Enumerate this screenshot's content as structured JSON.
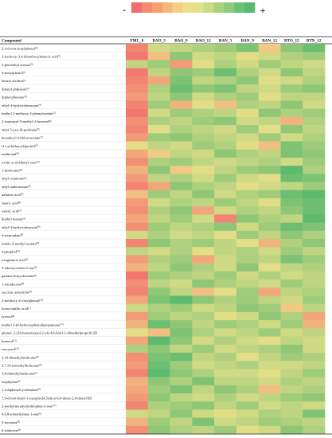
{
  "legend": {
    "minus_label": "-",
    "plus_label": "+",
    "colors": [
      "#f26c6c",
      "#f58a6e",
      "#f7a06e",
      "#f4b978",
      "#f2cf84",
      "#eedf8a",
      "#dfe28a",
      "#c9dd86",
      "#abd37e",
      "#8ccb7a",
      "#6cc274",
      "#58ba6e"
    ]
  },
  "colors": {
    "low": "#f26c6c",
    "mid": "#f1e28a",
    "high": "#4db56b",
    "gridline": "#cccccc"
  },
  "chart_data": {
    "type": "heatmap",
    "header_label": "Compound",
    "columns": [
      "FML_0",
      "BAO_3",
      "BAO_9",
      "BAO_12",
      "BAN_3",
      "BAN_9",
      "BAN_12",
      "BTO_12",
      "BTN_12"
    ],
    "rows": [
      {
        "name": "2,4-di-tert-butylphenol",
        "ref": "[2]",
        "values": [
          -0.8,
          0.2,
          0.3,
          0.4,
          0.5,
          0.7,
          -0.2,
          0.6,
          0.8
        ]
      },
      {
        "name": "2-hydroxy-3,4-dimethoxybenzoic acid",
        "ref": "[1]",
        "values": [
          -0.9,
          -0.3,
          0.6,
          0.2,
          0.3,
          0.1,
          0.2,
          0.4,
          0.5
        ]
      },
      {
        "name": "2-phenethyl acetate",
        "ref": "[3]",
        "values": [
          0.3,
          0.5,
          -0.6,
          0.1,
          0.4,
          0.2,
          0.5,
          0.3,
          0.2
        ]
      },
      {
        "name": "4-nonylphenol",
        "ref": "[1]",
        "values": [
          -0.9,
          0.3,
          0.6,
          0.5,
          0.8,
          0.4,
          0.2,
          0.6,
          0.3
        ]
      },
      {
        "name": "benzyl alcohol",
        "ref": "[1]",
        "values": [
          -0.8,
          -0.5,
          0.7,
          0.3,
          0.4,
          0.6,
          0.1,
          0.2,
          0.4
        ]
      },
      {
        "name": "dibutyl phthalate",
        "ref": "[2]",
        "values": [
          -0.7,
          0.4,
          0.8,
          0.6,
          0.7,
          0.3,
          0.2,
          0.5,
          0.6
        ]
      },
      {
        "name": "diphenylketone",
        "ref": "[3]",
        "values": [
          -0.6,
          0.3,
          0.6,
          0.2,
          0.4,
          0.5,
          0.1,
          0.3,
          0.3
        ]
      },
      {
        "name": "ethyl-4-hydroxybenzoate",
        "ref": "[4]",
        "values": [
          -0.8,
          0.5,
          -0.4,
          0.1,
          -0.3,
          0.4,
          0.3,
          0.6,
          0.2
        ]
      },
      {
        "name": "methyl 2-methoxy-2-phenylacetate",
        "ref": "[5]",
        "values": [
          -0.9,
          0.2,
          0.5,
          0.4,
          0.3,
          0.1,
          0.6,
          0.4,
          0.5
        ]
      },
      {
        "name": "2-isopropyl-5-methyl-2-hexenal",
        "ref": "[6]",
        "values": [
          -0.7,
          0.4,
          0.3,
          0.5,
          0.6,
          0.2,
          0.3,
          -0.4,
          0.4
        ]
      },
      {
        "name": "ethyl 5-oxo-dl-prolinate",
        "ref": "[6]",
        "values": [
          -0.8,
          0.1,
          0.4,
          0.3,
          0.2,
          0.5,
          0.1,
          0.6,
          0.3
        ]
      },
      {
        "name": "hexadecyl trichloroacetate",
        "ref": "[7]",
        "values": [
          -0.6,
          0.5,
          0.6,
          0.4,
          0.3,
          0.2,
          0.5,
          0.2,
          0.4
        ]
      },
      {
        "name": "[1-cyclo(leucyl)prolyl]",
        "ref": "[8]",
        "values": [
          0.1,
          0.3,
          0.2,
          0.5,
          0.4,
          0.1,
          -0.3,
          0.7,
          0.5
        ]
      },
      {
        "name": "methional",
        "ref": "[9]",
        "values": [
          -0.5,
          -0.2,
          0.3,
          0.2,
          0.6,
          0.4,
          0.3,
          0.7,
          0.6
        ]
      },
      {
        "name": "oxalic acid dibutyl ester",
        "ref": "[3]",
        "values": [
          -0.7,
          0.4,
          0.5,
          0.3,
          0.2,
          0.3,
          0.4,
          0.2,
          0.5
        ]
      },
      {
        "name": "1-dodecanol",
        "ref": "[4]",
        "values": [
          -0.4,
          0.6,
          -0.2,
          0.1,
          0.3,
          0.5,
          0.6,
          0.9,
          0.4
        ]
      },
      {
        "name": "ethyl octanoate",
        "ref": "[4]",
        "values": [
          -0.6,
          0.3,
          0.4,
          0.2,
          0.5,
          0.2,
          0.1,
          0.8,
          0.7
        ]
      },
      {
        "name": "ethyl undecanoate",
        "ref": "[4]",
        "values": [
          -0.8,
          -0.5,
          0.6,
          0.4,
          0.3,
          0.1,
          0.2,
          0.3,
          0.5
        ]
      },
      {
        "name": "palmitic acid",
        "ref": "[4]",
        "values": [
          -0.3,
          0.5,
          0.3,
          0.6,
          0.2,
          0.4,
          0.5,
          0.8,
          0.9
        ]
      },
      {
        "name": "stearic acid",
        "ref": "[4]",
        "values": [
          -0.6,
          0.2,
          0.4,
          0.3,
          0.5,
          0.3,
          0.1,
          0.7,
          0.8
        ]
      },
      {
        "name": "valeric acid",
        "ref": "[4]",
        "values": [
          -0.7,
          0.4,
          0.6,
          -0.5,
          0.2,
          0.4,
          0.3,
          0.6,
          0.8
        ]
      },
      {
        "name": "diethyl malate",
        "ref": "[4]",
        "values": [
          -0.5,
          0.3,
          0.5,
          0.2,
          -0.8,
          0.6,
          0.4,
          0.3,
          0.9
        ]
      },
      {
        "name": "ethyl-3-hydroxybutyrate",
        "ref": "[4]",
        "values": [
          -0.7,
          0.5,
          0.3,
          0.4,
          0.6,
          0.2,
          0.5,
          0.8,
          0.7
        ]
      },
      {
        "name": "d-tryptophan",
        "ref": "[8]",
        "values": [
          0.2,
          0.4,
          0.2,
          0.3,
          0.1,
          0.5,
          0.3,
          0.6,
          0.4
        ]
      },
      {
        "name": "indole-3-methyl acetate",
        "ref": "[8]",
        "values": [
          -0.8,
          0.6,
          0.4,
          0.5,
          0.3,
          0.1,
          -0.4,
          0.4,
          0.6
        ]
      },
      {
        "name": "tryptophol",
        "ref": "[8]",
        "values": [
          0.3,
          0.2,
          0.4,
          0.1,
          0.3,
          0.4,
          0.2,
          0.5,
          0.3
        ]
      },
      {
        "name": "oxoglutaric acid",
        "ref": "[1]",
        "values": [
          -0.6,
          0.4,
          0.5,
          -0.5,
          0.2,
          0.4,
          0.3,
          0.7,
          0.5
        ]
      },
      {
        "name": "5-ethoxyoxolan-2-one",
        "ref": "[8]",
        "values": [
          -0.4,
          0.3,
          0.6,
          0.4,
          0.2,
          0.6,
          0.1,
          0.3,
          0.4
        ]
      },
      {
        "name": "gamma-butyrolactone",
        "ref": "[8]",
        "values": [
          -0.9,
          0.5,
          0.4,
          0.3,
          0.5,
          0.2,
          0.4,
          0.2,
          0.3
        ]
      },
      {
        "name": "1-tetradecene",
        "ref": "[9]",
        "values": [
          -0.7,
          0.3,
          0.2,
          0.6,
          0.4,
          0.3,
          0.2,
          0.5,
          0.3
        ]
      },
      {
        "name": "succinic anhydride",
        "ref": "[9]",
        "values": [
          -0.8,
          0.6,
          0.3,
          -0.3,
          0.1,
          0.5,
          -0.5,
          0.3,
          0.4
        ]
      },
      {
        "name": "2-methoxy-4-vinylphenol",
        "ref": "[10]",
        "values": [
          -0.5,
          0.7,
          0.9,
          0.6,
          0.4,
          0.5,
          0.3,
          0.2,
          0.5
        ]
      },
      {
        "name": "homovanillic acid",
        "ref": "[1]",
        "values": [
          0.2,
          0.4,
          0.5,
          0.2,
          0.3,
          0.6,
          0.5,
          -0.2,
          0.3
        ]
      },
      {
        "name": "tyrosol",
        "ref": "[8]",
        "values": [
          -0.6,
          0.5,
          0.3,
          0.4,
          0.1,
          0.2,
          0.6,
          0.4,
          -0.5
        ]
      },
      {
        "name": "methyl 3-(4-hydroxyphenyl)propanoate",
        "ref": "[11]",
        "values": [
          -0.4,
          0.8,
          0.6,
          0.3,
          0.5,
          0.4,
          0.2,
          0.5,
          -0.4
        ]
      },
      {
        "name": "phenol, 2-(2h-benzotriazol-2-yl)-4,6-bis(1,1-dimethylpropyl)12D",
        "ref": "",
        "values": [
          0.1,
          -0.3,
          0.7,
          0.4,
          0.2,
          0.3,
          0.5,
          0.2,
          0.3
        ]
      },
      {
        "name": "borneol",
        "ref": "[12]",
        "values": [
          -0.5,
          0.9,
          0.6,
          0.2,
          0.4,
          0.2,
          0.1,
          0.3,
          0.2
        ]
      },
      {
        "name": "carvacrol",
        "ref": "[13]",
        "values": [
          0.4,
          0.6,
          0.3,
          0.5,
          0.2,
          0.3,
          0.4,
          0.6,
          0.2
        ]
      },
      {
        "name": "2,10-dimethylundecane",
        "ref": "[9]",
        "values": [
          -0.7,
          0.7,
          0.8,
          0.3,
          0.4,
          0.1,
          0.3,
          0.5,
          0.4
        ]
      },
      {
        "name": "2,7,10-trimethyldodecane",
        "ref": "[9]",
        "values": [
          -0.6,
          0.8,
          0.5,
          0.2,
          0.3,
          0.4,
          0.2,
          0.2,
          0.3
        ]
      },
      {
        "name": "3,8-dimethylundecane",
        "ref": "[9]",
        "values": [
          -0.8,
          0.9,
          0.6,
          0.4,
          0.2,
          0.2,
          0.1,
          0.3,
          0.5
        ]
      },
      {
        "name": "isophytane",
        "ref": "[9]",
        "values": [
          -0.4,
          0.6,
          0.4,
          0.7,
          0.3,
          0.3,
          0.2,
          0.4,
          0.3
        ]
      },
      {
        "name": "1,2-diphenylcyclobutane",
        "ref": "[9]",
        "values": [
          -0.5,
          0.5,
          0.7,
          0.3,
          0.6,
          0.4,
          -0.3,
          0.3,
          0.4
        ]
      },
      {
        "name": "7,9-di-tert-butyl-1-oxaspiro[4,5]deca-6,9-diene-2,8-dione16D",
        "ref": "",
        "values": [
          -0.6,
          0.6,
          0.3,
          0.2,
          0.4,
          0.2,
          0.3,
          0.5,
          0.6
        ]
      },
      {
        "name": "2-methyltetrahydrothiophen-3-one",
        "ref": "[11]",
        "values": [
          -0.8,
          0.4,
          0.5,
          0.6,
          0.3,
          0.5,
          0.2,
          0.3,
          0.2
        ]
      },
      {
        "name": "4,6,8-trimethylnon-1-ene",
        "ref": "[9]",
        "values": [
          0.2,
          0.3,
          0.6,
          0.2,
          0.1,
          0.2,
          0.4,
          0.3,
          0.7
        ]
      },
      {
        "name": "5-eicosene",
        "ref": "[9]",
        "values": [
          -0.4,
          0.5,
          0.3,
          0.7,
          0.2,
          0.3,
          0.5,
          0.4,
          0.3
        ]
      },
      {
        "name": "6-tridecene",
        "ref": "[9]",
        "values": [
          -0.7,
          0.6,
          0.4,
          0.3,
          0.5,
          0.1,
          0.2,
          0.6,
          0.4
        ]
      }
    ],
    "value_range": [
      -1,
      1
    ]
  }
}
